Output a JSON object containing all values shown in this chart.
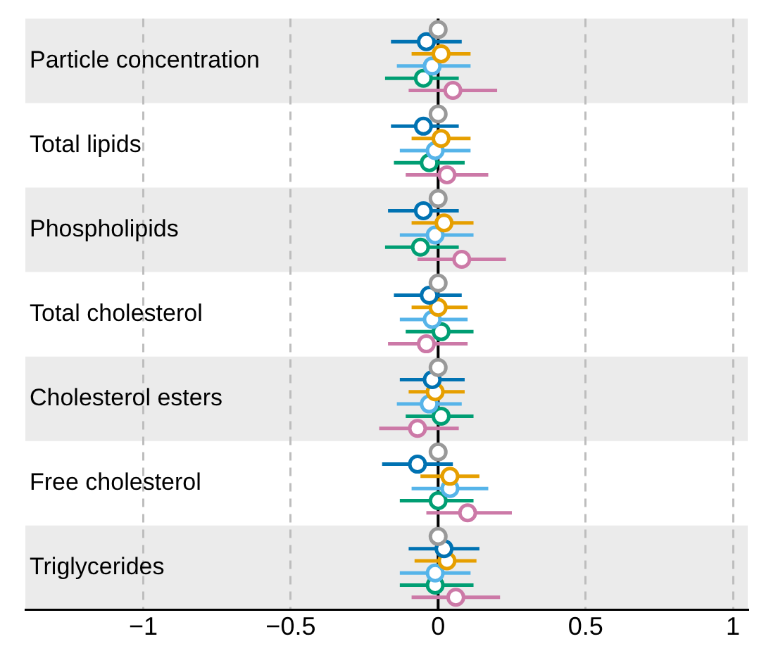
{
  "chart_data": {
    "type": "scatter",
    "orientation": "horizontal",
    "marker": "circle",
    "grid": "x",
    "categories": [
      "Particle concentration",
      "Total lipids",
      "Phospholipids",
      "Total cholesterol",
      "Cholesterol esters",
      "Free cholesterol",
      "Triglycerides"
    ],
    "xlim": [
      -1.4,
      1.05
    ],
    "xticks": [
      {
        "value": -1,
        "label": "−1"
      },
      {
        "value": -0.5,
        "label": "−0.5"
      },
      0,
      0.5,
      1
    ],
    "ref_lines": [
      {
        "axis": "x",
        "value": 0,
        "color": "#000000"
      }
    ],
    "bands": [
      {
        "axis": "y",
        "from": "Particle concentration",
        "to": "Particle concentration",
        "color": "#ebebeb"
      },
      {
        "axis": "y",
        "from": "Phospholipids",
        "to": "Phospholipids",
        "color": "#ebebeb"
      },
      {
        "axis": "y",
        "from": "Cholesterol esters",
        "to": "Cholesterol esters",
        "color": "#ebebeb"
      },
      {
        "axis": "y",
        "from": "Triglycerides",
        "to": "Triglycerides",
        "color": "#ebebeb"
      }
    ],
    "series": [
      {
        "color": "#999999",
        "values": [
          0,
          0,
          0,
          0,
          0,
          0,
          0
        ]
      },
      {
        "color": "#0072b2",
        "values": [
          -0.04,
          -0.05,
          -0.05,
          -0.03,
          -0.02,
          -0.07,
          0.02
        ],
        "errors": [
          [
            -0.16,
            0.08
          ],
          [
            -0.16,
            0.07
          ],
          [
            -0.17,
            0.07
          ],
          [
            -0.15,
            0.08
          ],
          [
            -0.13,
            0.09
          ],
          [
            -0.19,
            0.05
          ],
          [
            -0.1,
            0.14
          ]
        ]
      },
      {
        "color": "#e69f00",
        "values": [
          0.01,
          0.01,
          0.02,
          0,
          -0.01,
          0.04,
          0.03
        ],
        "errors": [
          [
            -0.09,
            0.11
          ],
          [
            -0.09,
            0.11
          ],
          [
            -0.09,
            0.12
          ],
          [
            -0.09,
            0.1
          ],
          [
            -0.1,
            0.09
          ],
          [
            -0.06,
            0.14
          ],
          [
            -0.08,
            0.13
          ]
        ]
      },
      {
        "color": "#56b4e9",
        "values": [
          -0.02,
          -0.01,
          -0.01,
          -0.02,
          -0.03,
          0.04,
          -0.01
        ],
        "errors": [
          [
            -0.14,
            0.11
          ],
          [
            -0.13,
            0.11
          ],
          [
            -0.13,
            0.12
          ],
          [
            -0.13,
            0.1
          ],
          [
            -0.14,
            0.08
          ],
          [
            -0.09,
            0.17
          ],
          [
            -0.13,
            0.11
          ]
        ]
      },
      {
        "color": "#009e73",
        "values": [
          -0.05,
          -0.03,
          -0.06,
          0.01,
          0.01,
          0,
          -0.01
        ],
        "errors": [
          [
            -0.18,
            0.07
          ],
          [
            -0.15,
            0.09
          ],
          [
            -0.18,
            0.07
          ],
          [
            -0.11,
            0.12
          ],
          [
            -0.11,
            0.12
          ],
          [
            -0.13,
            0.12
          ],
          [
            -0.13,
            0.12
          ]
        ]
      },
      {
        "color": "#cc79a7",
        "values": [
          0.05,
          0.03,
          0.08,
          -0.04,
          -0.07,
          0.1,
          0.06
        ],
        "errors": [
          [
            -0.1,
            0.2
          ],
          [
            -0.11,
            0.17
          ],
          [
            -0.07,
            0.23
          ],
          [
            -0.17,
            0.1
          ],
          [
            -0.2,
            0.07
          ],
          [
            -0.04,
            0.25
          ],
          [
            -0.09,
            0.21
          ]
        ]
      }
    ]
  }
}
